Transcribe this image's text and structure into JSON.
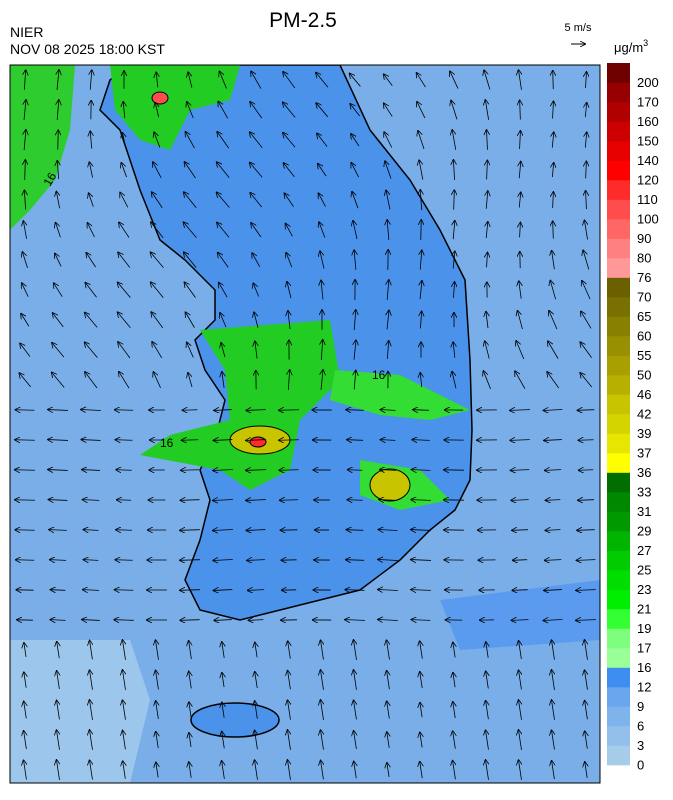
{
  "header": {
    "title": "PM-2.5",
    "agency": "NIER",
    "datetime": "NOV 08 2025 18:00 KST",
    "wind_scale": "5 m/s",
    "unit": "μg/m",
    "unit_exponent": "3"
  },
  "colorbar": {
    "levels": [
      0,
      3,
      6,
      9,
      12,
      16,
      17,
      19,
      21,
      23,
      25,
      27,
      29,
      31,
      33,
      36,
      37,
      39,
      42,
      46,
      50,
      55,
      60,
      65,
      70,
      76,
      80,
      90,
      100,
      110,
      120,
      140,
      150,
      160,
      170,
      200
    ],
    "colors": [
      "#a6cde8",
      "#92c0ea",
      "#7fb3ec",
      "#6aa6ee",
      "#3d8ef0",
      "#99ff99",
      "#7dff7d",
      "#33ff33",
      "#00ee00",
      "#00dd00",
      "#00cc00",
      "#00b400",
      "#009a00",
      "#008800",
      "#006e00",
      "#ffff00",
      "#e6e600",
      "#d4d400",
      "#c8c400",
      "#b8b000",
      "#a8a000",
      "#989000",
      "#888000",
      "#787000",
      "#6a6000",
      "#ff9999",
      "#ff8080",
      "#ff6666",
      "#ff4d4d",
      "#ff2a2a",
      "#ff0000",
      "#e60000",
      "#cc0000",
      "#b00000",
      "#960000",
      "#6e0000"
    ]
  },
  "map": {
    "contour_labels": [
      "16",
      "16",
      "16"
    ]
  }
}
